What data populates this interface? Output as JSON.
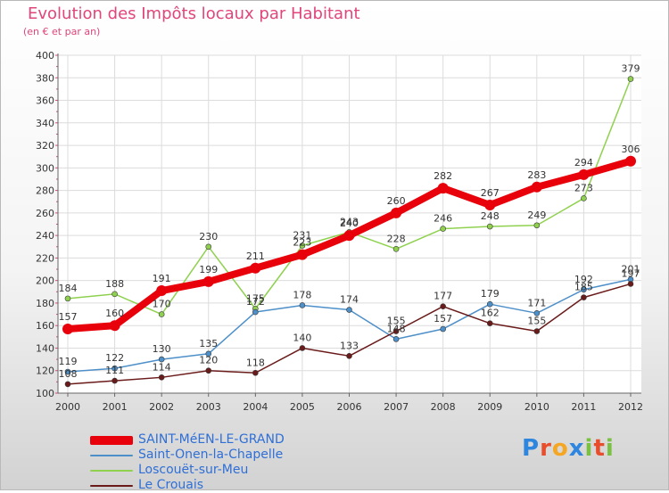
{
  "title": "Evolution des Impôts locaux par Habitant",
  "subtitle": "(en € et par an)",
  "logo": {
    "letters": [
      "P",
      "r",
      "o",
      "x",
      "i",
      "t",
      "i"
    ],
    "colors": [
      "#2e86de",
      "#e94e2c",
      "#f5a623",
      "#2e86de",
      "#7ac143",
      "#e94e2c",
      "#7ac143"
    ]
  },
  "chart_data": {
    "type": "line",
    "title": "Evolution des Impôts locaux par Habitant",
    "subtitle": "(en € et par an)",
    "xlabel": "",
    "ylabel": "",
    "x": [
      "2000",
      "2001",
      "2002",
      "2003",
      "2004",
      "2005",
      "2006",
      "2007",
      "2008",
      "2009",
      "2010",
      "2011",
      "2012"
    ],
    "ylim": [
      100,
      400
    ],
    "yticks": [
      "100",
      "120",
      "140",
      "160",
      "180",
      "200",
      "220",
      "240",
      "260",
      "280",
      "300",
      "320",
      "340",
      "360",
      "380",
      "400"
    ],
    "grid": true,
    "legend_position": "bottom-left",
    "series": [
      {
        "name": "SAINT-MéEN-LE-GRAND",
        "color": "#e8000b",
        "values": [
          157,
          160,
          191,
          199,
          211,
          223,
          240,
          260,
          282,
          267,
          283,
          294,
          306
        ],
        "labels": [
          "157",
          "160",
          "191",
          "199",
          "211",
          "223",
          "240",
          "260",
          "282",
          "267",
          "283",
          "294",
          "306"
        ]
      },
      {
        "name": "Saint-Onen-la-Chapelle",
        "color": "#4d8fc9",
        "values": [
          119,
          122,
          130,
          135,
          172,
          178,
          174,
          148,
          157,
          179,
          171,
          192,
          201
        ],
        "labels": [
          "119",
          "122",
          "130",
          "135",
          "172",
          "178",
          "174",
          "148",
          "157",
          "179",
          "171",
          "192",
          "201"
        ]
      },
      {
        "name": "Loscouët-sur-Meu",
        "color": "#8fd14f",
        "values": [
          184,
          188,
          170,
          230,
          175,
          231,
          243,
          228,
          246,
          248,
          249,
          273,
          379
        ],
        "labels": [
          "184",
          "188",
          "170",
          "230",
          "175",
          "231",
          "243",
          "228",
          "246",
          "248",
          "249",
          "273",
          "379"
        ]
      },
      {
        "name": "Le Crouais",
        "color": "#6b1a1a",
        "values": [
          108,
          111,
          114,
          120,
          118,
          140,
          133,
          155,
          177,
          162,
          155,
          185,
          197
        ],
        "labels": [
          "108",
          "111",
          "114",
          "120",
          "118",
          "140",
          "133",
          "155",
          "177",
          "162",
          "155",
          "185",
          "197"
        ]
      }
    ]
  }
}
